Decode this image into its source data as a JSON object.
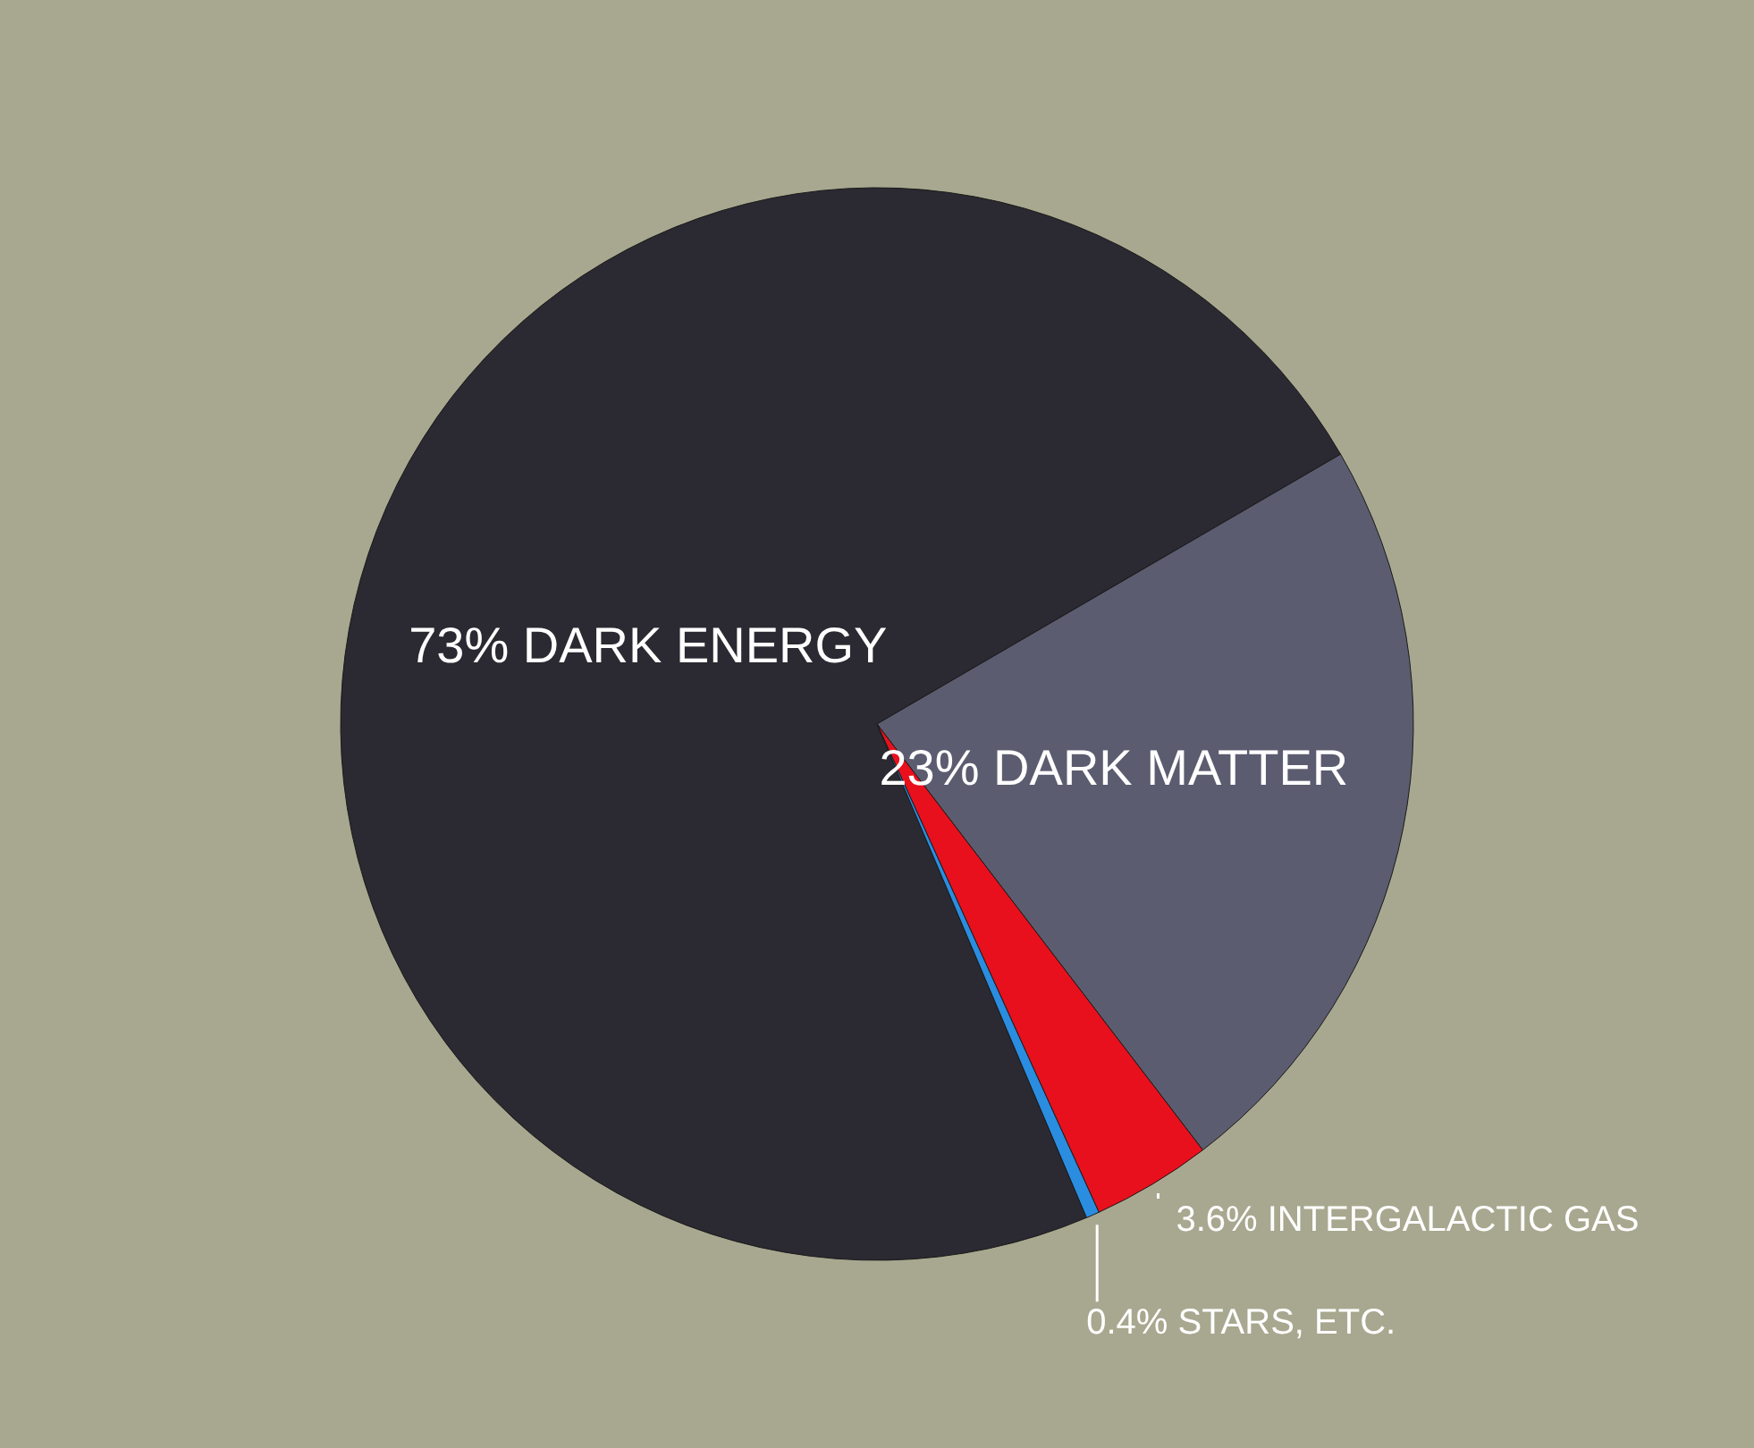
{
  "chart_data": {
    "type": "pie",
    "categories": [
      "DARK ENERGY",
      "DARK MATTER",
      "INTERGALACTIC GAS",
      "STARS, ETC."
    ],
    "values": [
      73,
      23,
      3.6,
      0.4
    ],
    "value_labels": [
      "73%",
      "23%",
      "3.6%",
      "0.4%"
    ],
    "colors": [
      "#2b2931",
      "#5c5c70",
      "#e8101c",
      "#2a8de0"
    ],
    "legend": false
  }
}
